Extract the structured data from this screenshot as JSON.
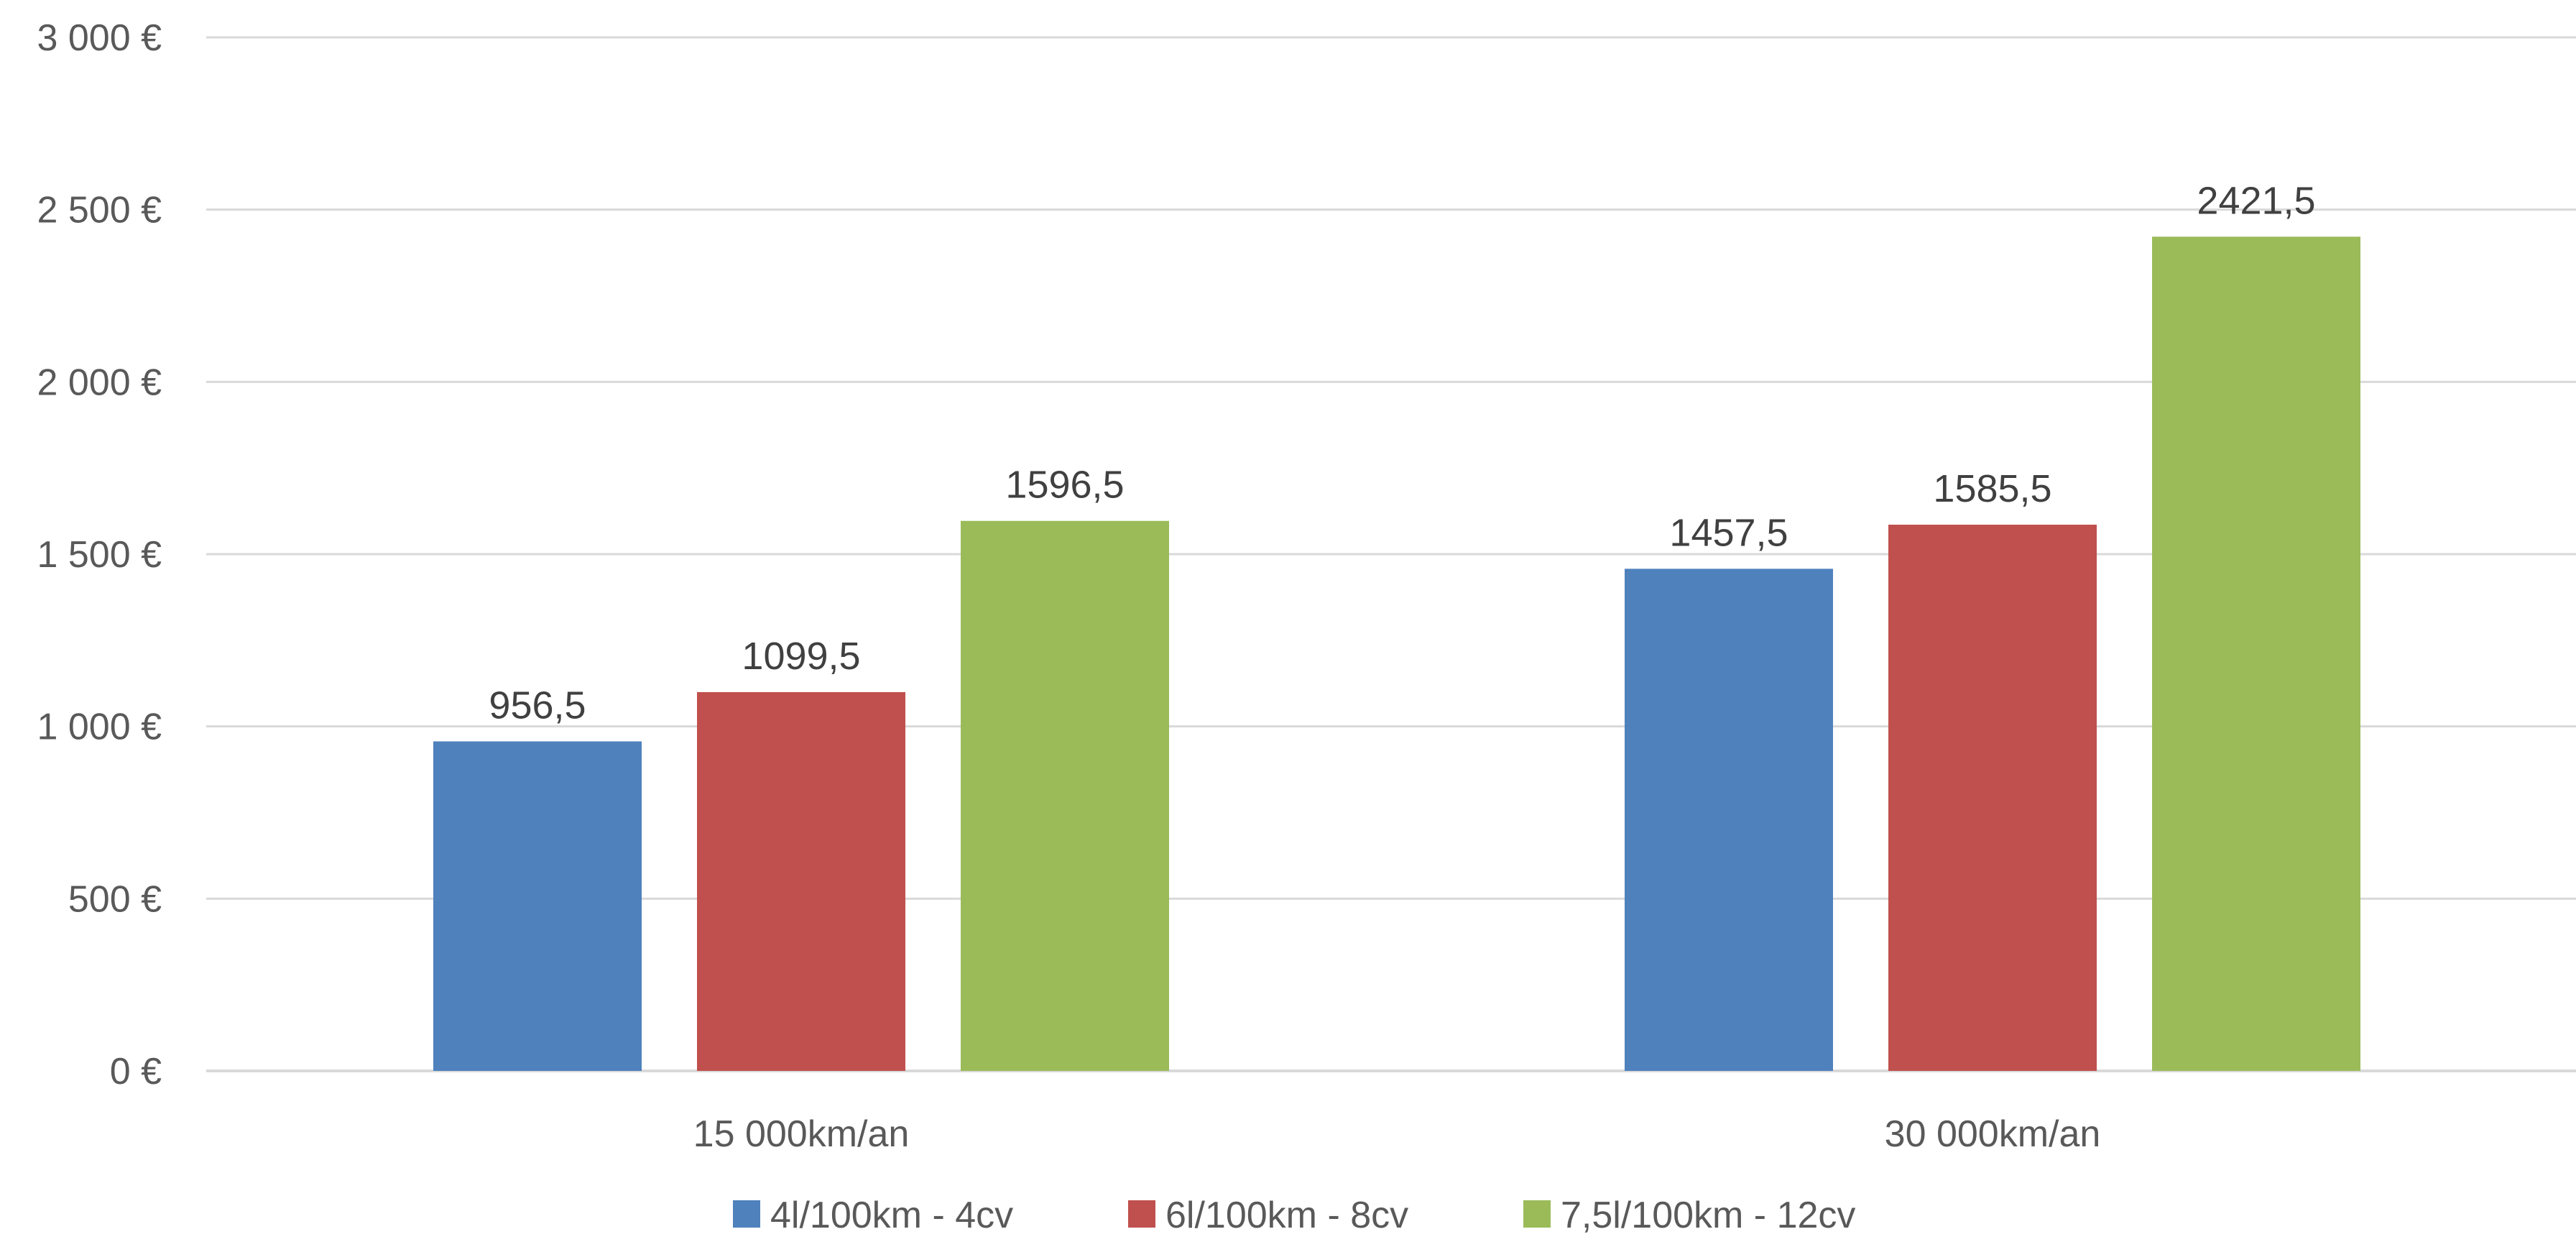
{
  "chart_data": {
    "type": "bar",
    "title": "",
    "xlabel": "",
    "ylabel": "",
    "categories": [
      "15 000km/an",
      "30 000km/an"
    ],
    "series": [
      {
        "name": "4l/100km - 4cv",
        "color": "#4F81BD",
        "values": [
          956.5,
          1457.5
        ],
        "labels": [
          "956,5",
          "1457,5"
        ]
      },
      {
        "name": "6l/100km - 8cv",
        "color": "#C0504D",
        "values": [
          1099.5,
          1585.5
        ],
        "labels": [
          "1099,5",
          "1585,5"
        ]
      },
      {
        "name": "7,5l/100km - 12cv",
        "color": "#9BBB59",
        "values": [
          1596.5,
          2421.5
        ],
        "labels": [
          "1596,5",
          "2421,5"
        ]
      }
    ],
    "ylim": [
      0,
      3000
    ],
    "y_ticks": [
      0,
      500,
      1000,
      1500,
      2000,
      2500,
      3000
    ],
    "y_tick_labels": [
      "0 €",
      "500 €",
      "1 000 €",
      "1 500 €",
      "2 000 €",
      "2 500 €",
      "3 000 €"
    ],
    "grid": true,
    "grid_color": "#D9D9D9",
    "legend": "bottom-center"
  }
}
